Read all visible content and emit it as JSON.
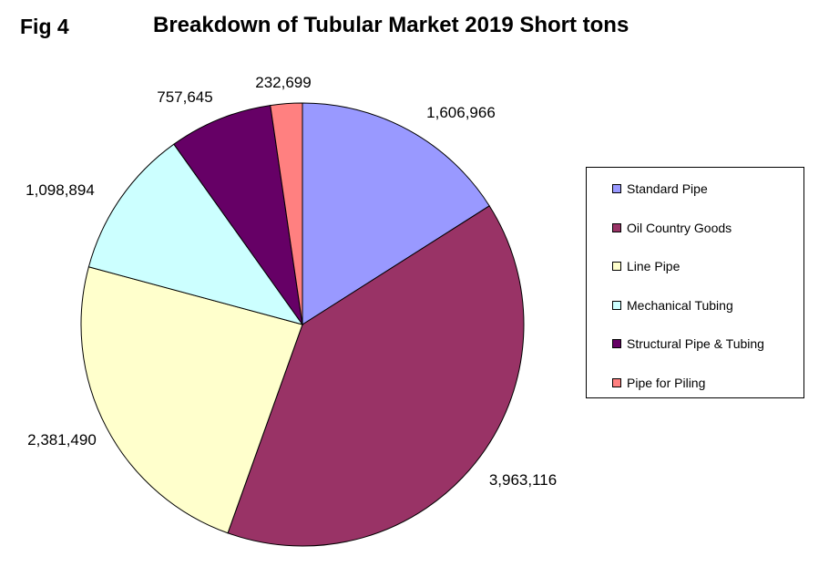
{
  "header": {
    "fig_label": "Fig 4"
  },
  "chart_data": {
    "type": "pie",
    "title": "Breakdown of Tubular Market 2019 Short tons",
    "categories": [
      "Standard Pipe",
      "Oil Country Goods",
      "Line Pipe",
      "Mechanical Tubing",
      "Structural Pipe & Tubing",
      "Pipe for Piling"
    ],
    "values": [
      1606966,
      3963116,
      2381490,
      1098894,
      757645,
      232699
    ],
    "value_labels": [
      "1,606,966",
      "3,963,116",
      "2,381,490",
      "1,098,894",
      "757,645",
      "232,699"
    ],
    "colors": [
      "#9999FF",
      "#993366",
      "#FFFFCC",
      "#CCFFFF",
      "#660066",
      "#FF8080"
    ],
    "start_angle": "12 o'clock",
    "direction": "clockwise",
    "legend_position": "right"
  }
}
